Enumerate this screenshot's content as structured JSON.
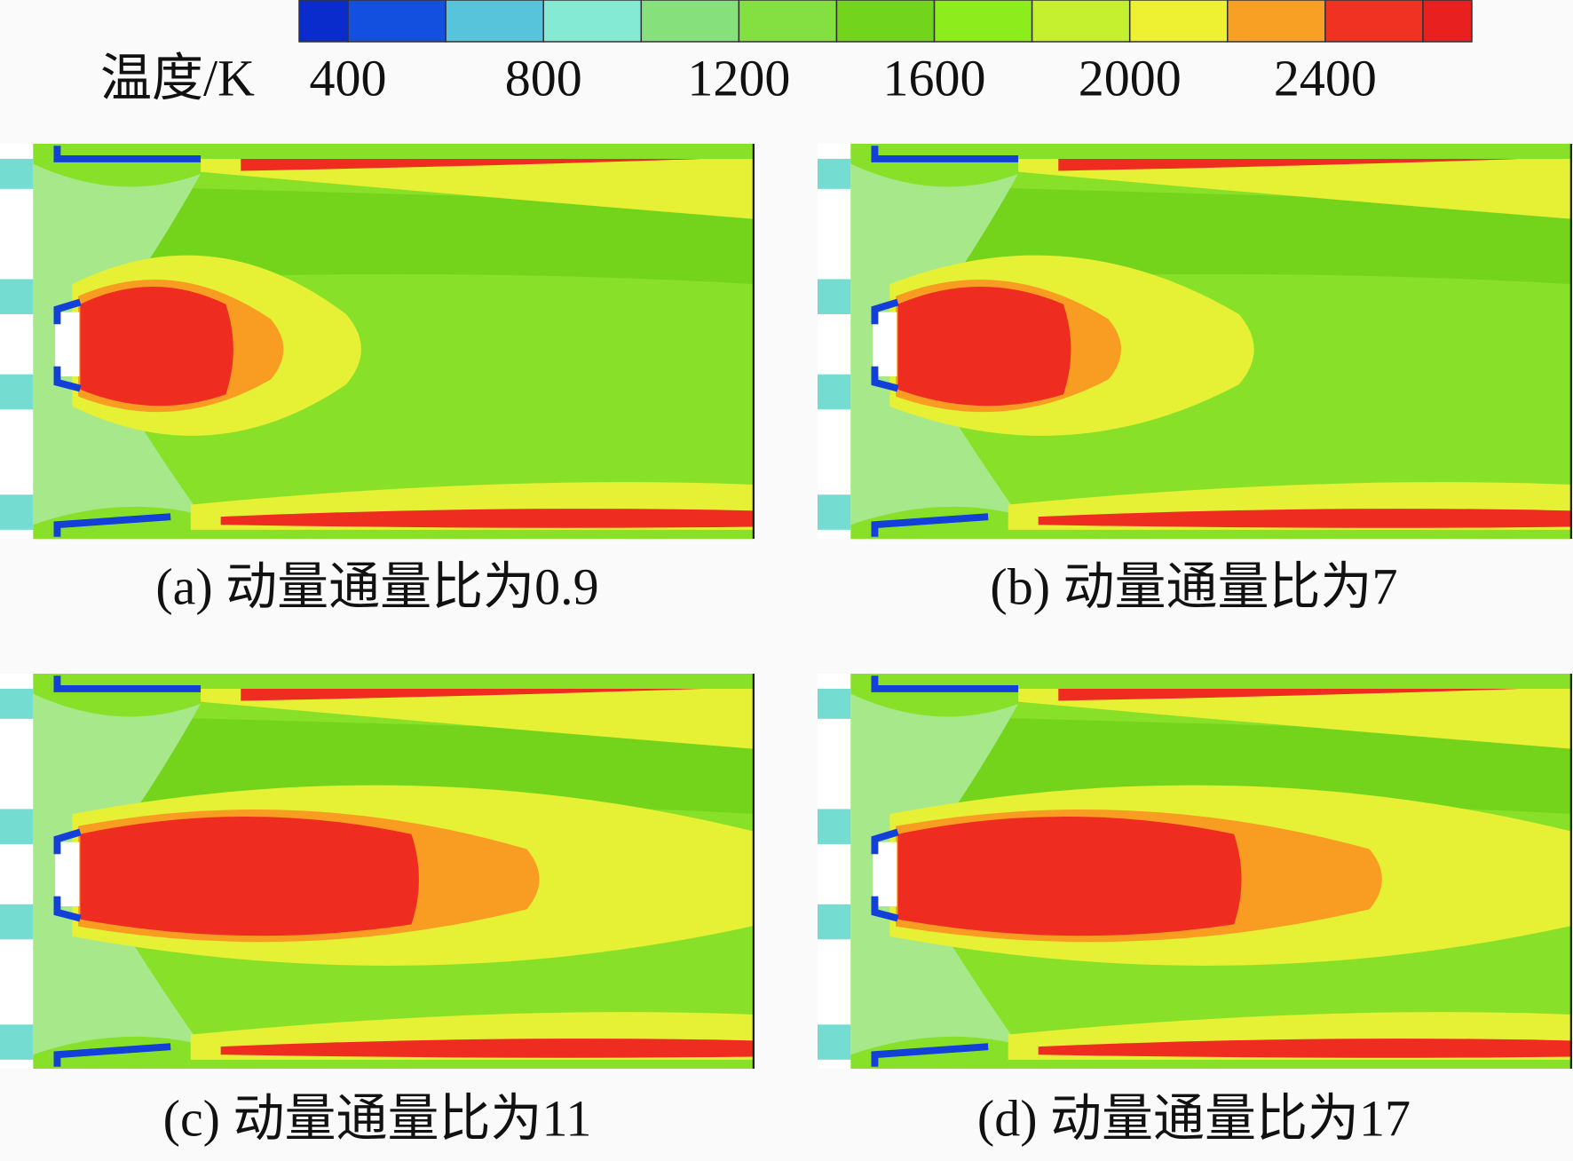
{
  "colorbar": {
    "label": "温度/K",
    "range": [
      300,
      2700
    ],
    "levels": [
      300,
      400,
      600,
      800,
      1000,
      1200,
      1400,
      1600,
      1800,
      2000,
      2200,
      2400,
      2600,
      2700
    ],
    "colors": [
      "#0a2ccc",
      "#1450e0",
      "#58c4dc",
      "#84ead4",
      "#86e07c",
      "#84e040",
      "#72d41c",
      "#8cec1c",
      "#c4f030",
      "#eef032",
      "#f8a024",
      "#f03222",
      "#e82020"
    ],
    "ticks": [
      400,
      800,
      1200,
      1600,
      2000,
      2400
    ]
  },
  "panels": [
    {
      "caption": "(a) 动量通量比为0.9"
    },
    {
      "caption": "(b) 动量通量比为7"
    },
    {
      "caption": "(c) 动量通量比为11"
    },
    {
      "caption": "(d) 动量通量比为17"
    }
  ]
}
